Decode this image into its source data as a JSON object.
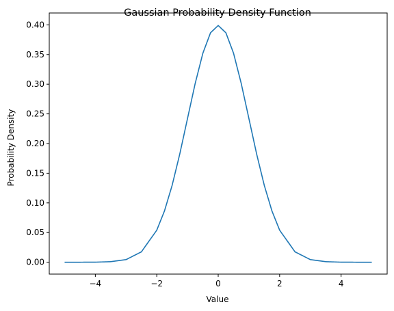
{
  "chart_data": {
    "type": "line",
    "title": "Gaussian Probability Density Function",
    "xlabel": "Value",
    "ylabel": "Probability Density",
    "xlim": [
      -5.5,
      5.5
    ],
    "ylim": [
      -0.02,
      0.42
    ],
    "xticks": [
      -4,
      -2,
      0,
      2,
      4
    ],
    "xtick_labels": [
      "−4",
      "−2",
      "0",
      "2",
      "4"
    ],
    "yticks": [
      0.0,
      0.05,
      0.1,
      0.15,
      0.2,
      0.25,
      0.3,
      0.35,
      0.4
    ],
    "ytick_labels": [
      "0.00",
      "0.05",
      "0.10",
      "0.15",
      "0.20",
      "0.25",
      "0.30",
      "0.35",
      "0.40"
    ],
    "grid": false,
    "series": [
      {
        "color": "#1f77b4",
        "x": [
          -5.0,
          -4.5,
          -4.0,
          -3.5,
          -3.0,
          -2.5,
          -2.0,
          -1.75,
          -1.5,
          -1.25,
          -1.0,
          -0.75,
          -0.5,
          -0.25,
          0.0,
          0.25,
          0.5,
          0.75,
          1.0,
          1.25,
          1.5,
          1.75,
          2.0,
          2.5,
          3.0,
          3.5,
          4.0,
          4.5,
          5.0
        ],
        "y": [
          0.0,
          0.0,
          0.0001,
          0.0009,
          0.0044,
          0.0175,
          0.054,
          0.0863,
          0.1295,
          0.1826,
          0.242,
          0.3011,
          0.3521,
          0.3867,
          0.3989,
          0.3867,
          0.3521,
          0.3011,
          0.242,
          0.1826,
          0.1295,
          0.0863,
          0.054,
          0.0175,
          0.0044,
          0.0009,
          0.0001,
          0.0,
          0.0
        ]
      }
    ]
  }
}
